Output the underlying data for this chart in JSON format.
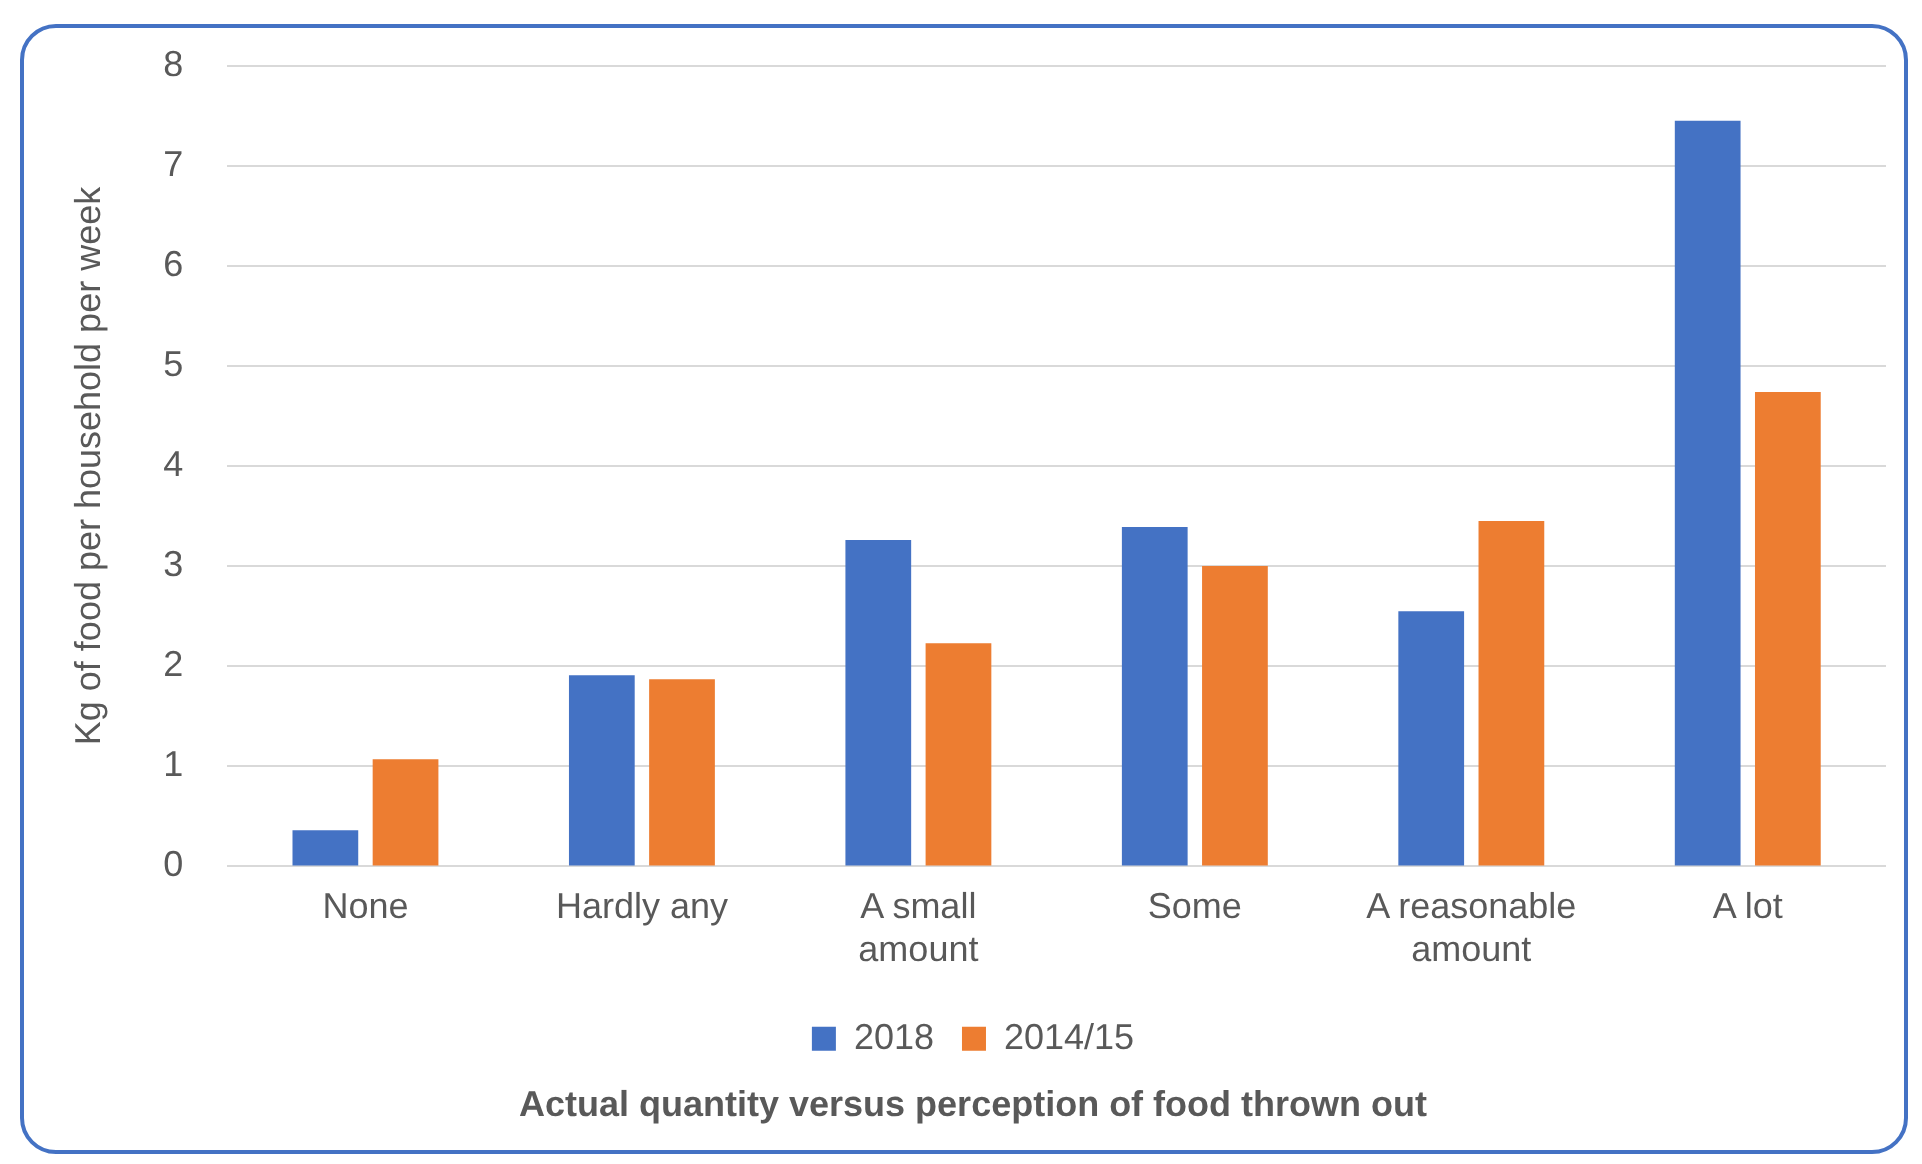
{
  "chart_data": {
    "type": "bar",
    "xlabel": "Actual quantity versus perception of food thrown out",
    "ylabel": "Kg of food per household per week",
    "categories": [
      "None",
      "Hardly any",
      "A small amount",
      "Some",
      "A reasonable amount",
      "A lot"
    ],
    "series": [
      {
        "name": "2018",
        "color": "#4472c4",
        "values": [
          0.36,
          1.91,
          3.26,
          3.39,
          2.55,
          7.45
        ]
      },
      {
        "name": "2014/15",
        "color": "#ed7d31",
        "values": [
          1.07,
          1.87,
          2.23,
          3.0,
          3.45,
          4.74
        ]
      }
    ],
    "ylim": [
      0,
      8
    ],
    "yticks": [
      0,
      1,
      2,
      3,
      4,
      5,
      6,
      7,
      8
    ],
    "grid": "y",
    "legend": "bottom"
  }
}
